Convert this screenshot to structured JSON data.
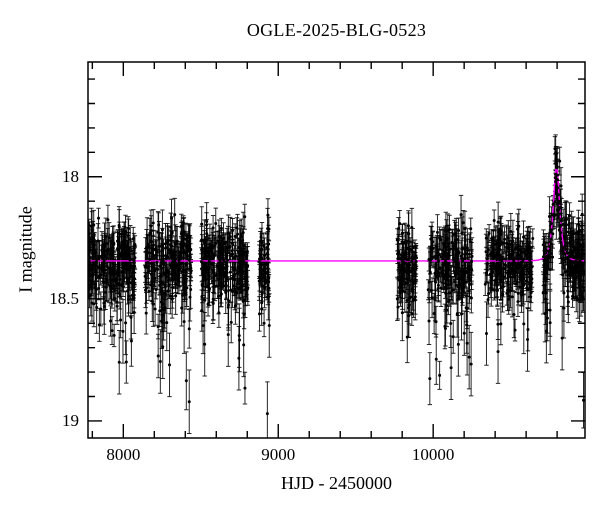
{
  "page": {
    "background": "#ffffff"
  },
  "chart_data": {
    "type": "scatter",
    "title": "OGLE-2025-BLG-0523",
    "xlabel": "HJD - 2450000",
    "ylabel": "I magnitude",
    "xlim": [
      7772,
      10980
    ],
    "ylim_top": 17.53,
    "ylim_bottom": 19.07,
    "y_axis_inverted_magnitude": true,
    "xticks": {
      "major": [
        8000,
        9000,
        10000
      ],
      "labels": [
        "8000",
        "9000",
        "10000"
      ],
      "minor_step": 200
    },
    "yticks": {
      "major": [
        18,
        18.5,
        19
      ],
      "labels": [
        "18",
        "18.5",
        "19"
      ],
      "minor_step": 0.1
    },
    "grid": false,
    "legend": null,
    "frame_color": "#000000",
    "point_color": "#000000",
    "errorbar_color": "#000000",
    "model_color": "#ff00ff",
    "model": {
      "type": "pspl_microlensing",
      "baseline_mag": 18.345,
      "t0": 10796,
      "u0": 0.9,
      "tE": 26,
      "peak_mag": 17.96
    },
    "seasons": [
      {
        "t_start": 7772,
        "t_end": 8075,
        "n": 230
      },
      {
        "t_start": 8140,
        "t_end": 8437,
        "n": 210
      },
      {
        "t_start": 8503,
        "t_end": 8806,
        "n": 230
      },
      {
        "t_start": 8871,
        "t_end": 8942,
        "n": 55
      },
      {
        "t_start": 9768,
        "t_end": 9890,
        "n": 95
      },
      {
        "t_start": 9968,
        "t_end": 10252,
        "n": 190
      },
      {
        "t_start": 10336,
        "t_end": 10645,
        "n": 210
      },
      {
        "t_start": 10710,
        "t_end": 10980,
        "n": 215
      }
    ],
    "scatter_sigma_mag": 0.075,
    "faint_tail_fraction": 0.3,
    "faint_tail_scale_mag": 0.11,
    "error_bar_mag_range": [
      0.035,
      0.13
    ]
  }
}
